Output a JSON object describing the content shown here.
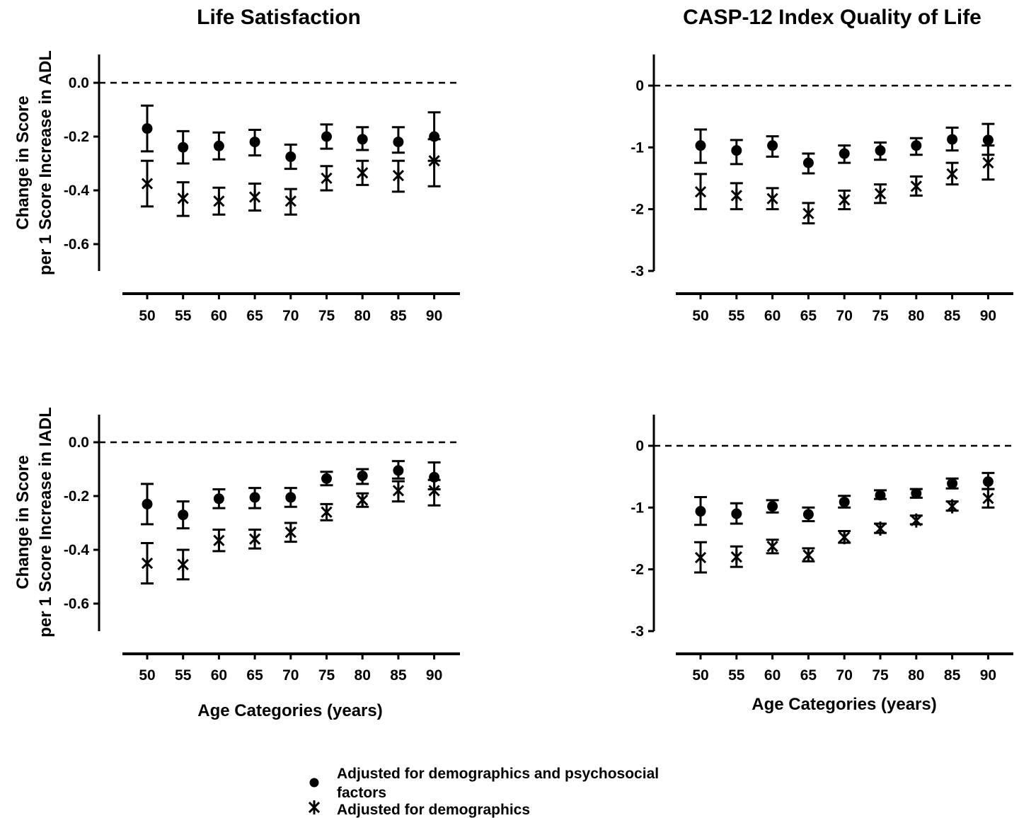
{
  "titles": {
    "col1": "Life Satisfaction",
    "col2": "CASP-12 Index Quality of Life"
  },
  "ylabels": {
    "row1_line1": "Change in Score",
    "row1_line2": "per 1 Score Increase in ADL",
    "row2_line1": "Change in Score",
    "row2_line2": "per 1 Score Increase in IADL"
  },
  "xlabel": "Age Categories (years)",
  "legend": {
    "series1_line1": "Adjusted for demographics and psychosocial",
    "series1_line2": "factors",
    "series2": "Adjusted for demographics"
  },
  "chart_data": [
    {
      "type": "scatter",
      "title": "Life Satisfaction",
      "row": "ADL",
      "x": [
        50,
        55,
        60,
        65,
        70,
        75,
        80,
        85,
        90
      ],
      "ylim": [
        -0.7,
        0.1
      ],
      "yticks": [
        "0.0",
        "-0.2",
        "-0.4",
        "-0.6"
      ],
      "reference_line": 0,
      "series": [
        {
          "marker": "dot",
          "values": [
            -0.17,
            -0.24,
            -0.235,
            -0.22,
            -0.275,
            -0.2,
            -0.21,
            -0.22,
            -0.2
          ],
          "lower": [
            -0.255,
            -0.3,
            -0.285,
            -0.27,
            -0.32,
            -0.245,
            -0.25,
            -0.26,
            -0.29
          ],
          "upper": [
            -0.085,
            -0.18,
            -0.185,
            -0.175,
            -0.23,
            -0.155,
            -0.165,
            -0.165,
            -0.11
          ]
        },
        {
          "marker": "asterisk",
          "values": [
            -0.375,
            -0.43,
            -0.44,
            -0.425,
            -0.44,
            -0.355,
            -0.335,
            -0.345,
            -0.29
          ],
          "lower": [
            -0.46,
            -0.495,
            -0.49,
            -0.475,
            -0.49,
            -0.4,
            -0.38,
            -0.405,
            -0.385
          ],
          "upper": [
            -0.29,
            -0.37,
            -0.39,
            -0.375,
            -0.395,
            -0.31,
            -0.29,
            -0.29,
            -0.21
          ]
        }
      ]
    },
    {
      "type": "scatter",
      "title": "CASP-12 Index Quality of Life",
      "row": "ADL",
      "x": [
        50,
        55,
        60,
        65,
        70,
        75,
        80,
        85,
        90
      ],
      "ylim": [
        -3,
        0.5
      ],
      "yticks": [
        "0",
        "-1",
        "-2",
        "-3"
      ],
      "reference_line": 0,
      "series": [
        {
          "marker": "dot",
          "values": [
            -0.97,
            -1.05,
            -0.97,
            -1.25,
            -1.1,
            -1.05,
            -0.97,
            -0.87,
            -0.88
          ],
          "lower": [
            -1.25,
            -1.27,
            -1.15,
            -1.42,
            -1.25,
            -1.2,
            -1.12,
            -1.05,
            -1.12
          ],
          "upper": [
            -0.71,
            -0.88,
            -0.82,
            -1.1,
            -0.97,
            -0.92,
            -0.85,
            -0.68,
            -0.62
          ]
        },
        {
          "marker": "asterisk",
          "values": [
            -1.72,
            -1.78,
            -1.83,
            -2.07,
            -1.85,
            -1.75,
            -1.63,
            -1.43,
            -1.25
          ],
          "lower": [
            -2.0,
            -2.0,
            -2.0,
            -2.23,
            -2.0,
            -1.9,
            -1.78,
            -1.6,
            -1.52
          ],
          "upper": [
            -1.43,
            -1.58,
            -1.66,
            -1.9,
            -1.7,
            -1.6,
            -1.47,
            -1.25,
            -0.97
          ]
        }
      ]
    },
    {
      "type": "scatter",
      "title": "Life Satisfaction",
      "row": "IADL",
      "xlabel": "Age Categories (years)",
      "x": [
        50,
        55,
        60,
        65,
        70,
        75,
        80,
        85,
        90
      ],
      "ylim": [
        -0.7,
        0.1
      ],
      "yticks": [
        "0.0",
        "-0.2",
        "-0.4",
        "-0.6"
      ],
      "reference_line": 0,
      "series": [
        {
          "marker": "dot",
          "values": [
            -0.23,
            -0.27,
            -0.21,
            -0.205,
            -0.205,
            -0.135,
            -0.125,
            -0.105,
            -0.13
          ],
          "lower": [
            -0.305,
            -0.32,
            -0.245,
            -0.245,
            -0.24,
            -0.16,
            -0.155,
            -0.135,
            -0.175
          ],
          "upper": [
            -0.155,
            -0.22,
            -0.175,
            -0.17,
            -0.17,
            -0.11,
            -0.1,
            -0.07,
            -0.075
          ]
        },
        {
          "marker": "asterisk",
          "values": [
            -0.45,
            -0.455,
            -0.365,
            -0.36,
            -0.335,
            -0.26,
            -0.215,
            -0.18,
            -0.18
          ],
          "lower": [
            -0.525,
            -0.51,
            -0.405,
            -0.395,
            -0.37,
            -0.29,
            -0.24,
            -0.22,
            -0.235
          ],
          "upper": [
            -0.375,
            -0.4,
            -0.325,
            -0.325,
            -0.3,
            -0.23,
            -0.19,
            -0.145,
            -0.14
          ]
        }
      ]
    },
    {
      "type": "scatter",
      "title": "CASP-12 Index Quality of Life",
      "row": "IADL",
      "xlabel": "Age Categories (years)",
      "x": [
        50,
        55,
        60,
        65,
        70,
        75,
        80,
        85,
        90
      ],
      "ylim": [
        -3,
        0.5
      ],
      "yticks": [
        "0",
        "-1",
        "-2",
        "-3"
      ],
      "reference_line": 0,
      "series": [
        {
          "marker": "dot",
          "values": [
            -1.06,
            -1.1,
            -0.98,
            -1.11,
            -0.91,
            -0.8,
            -0.77,
            -0.61,
            -0.58
          ],
          "lower": [
            -1.28,
            -1.26,
            -1.08,
            -1.22,
            -1.0,
            -0.86,
            -0.84,
            -0.69,
            -0.7
          ],
          "upper": [
            -0.83,
            -0.93,
            -0.88,
            -1.0,
            -0.81,
            -0.72,
            -0.7,
            -0.53,
            -0.44
          ]
        },
        {
          "marker": "asterisk",
          "values": [
            -1.81,
            -1.8,
            -1.63,
            -1.77,
            -1.48,
            -1.34,
            -1.21,
            -0.98,
            -0.85
          ],
          "lower": [
            -2.05,
            -1.96,
            -1.74,
            -1.87,
            -1.57,
            -1.41,
            -1.27,
            -1.05,
            -1.0
          ],
          "upper": [
            -1.56,
            -1.63,
            -1.52,
            -1.66,
            -1.38,
            -1.26,
            -1.13,
            -0.9,
            -0.7
          ]
        }
      ]
    }
  ]
}
